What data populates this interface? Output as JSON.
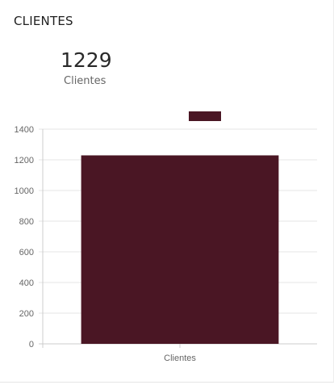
{
  "card": {
    "title": "CLIENTES",
    "stat_value": "1229",
    "stat_label": "Clientes"
  },
  "colors": {
    "bar": "#4a1624",
    "grid": "#e6e6e6",
    "axis": "#cccccc",
    "tick_text": "#666666"
  },
  "chart_data": {
    "type": "bar",
    "categories": [
      "Clientes"
    ],
    "values": [
      1229
    ],
    "ylim": [
      0,
      1400
    ],
    "yticks": [
      0,
      200,
      400,
      600,
      800,
      1000,
      1200,
      1400
    ],
    "grid": true,
    "legend": "top-center",
    "series": [
      {
        "color": "#4a1624"
      }
    ]
  }
}
